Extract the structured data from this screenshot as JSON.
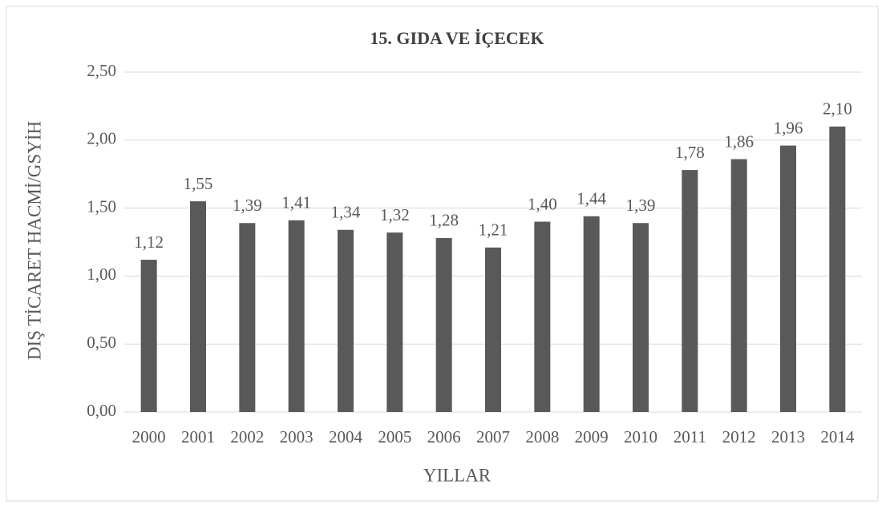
{
  "chart_data": {
    "type": "bar",
    "title": "15. GIDA VE  İÇECEK",
    "x_label": "YILLAR",
    "y_label": "DIŞ TİCARET HACMİ/GSYİH",
    "categories": [
      "2000",
      "2001",
      "2002",
      "2003",
      "2004",
      "2005",
      "2006",
      "2007",
      "2008",
      "2009",
      "2010",
      "2011",
      "2012",
      "2013",
      "2014"
    ],
    "values": [
      1.12,
      1.55,
      1.39,
      1.41,
      1.34,
      1.32,
      1.28,
      1.21,
      1.4,
      1.44,
      1.39,
      1.78,
      1.86,
      1.96,
      2.1
    ],
    "value_labels": [
      "1,12",
      "1,55",
      "1,39",
      "1,41",
      "1,34",
      "1,32",
      "1,28",
      "1,21",
      "1,40",
      "1,44",
      "1,39",
      "1,78",
      "1,86",
      "1,96",
      "2,10"
    ],
    "color": "#595959",
    "ylim": [
      0,
      2.5
    ],
    "yticks": [
      {
        "value": 0,
        "label": "0,00"
      },
      {
        "value": 0.5,
        "label": "0,50"
      },
      {
        "value": 1,
        "label": "1,00"
      },
      {
        "value": 1.5,
        "label": "1,50"
      },
      {
        "value": 2,
        "label": "2,00"
      },
      {
        "value": 2.5,
        "label": "2,50"
      }
    ],
    "grid": true
  }
}
